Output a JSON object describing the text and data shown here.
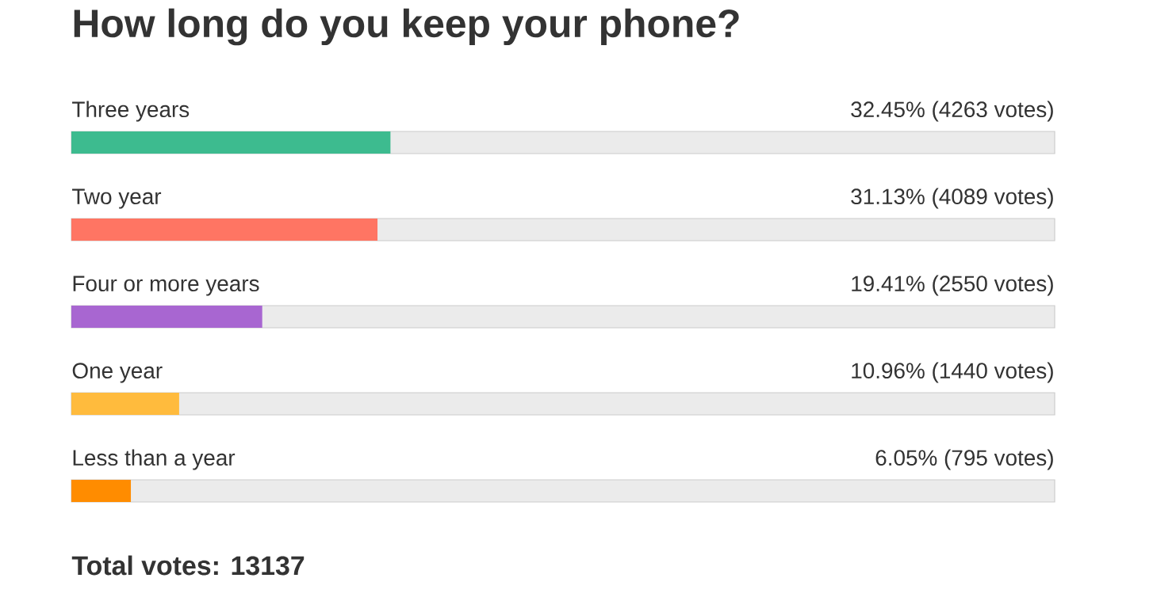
{
  "chart_data": {
    "type": "bar",
    "orientation": "horizontal",
    "title": "How long do you keep your phone?",
    "categories": [
      "Three years",
      "Two year",
      "Four or more years",
      "One year",
      "Less than a year"
    ],
    "values": [
      32.45,
      31.13,
      19.41,
      10.96,
      6.05
    ],
    "value_labels": [
      "32.45% (4263 votes)",
      "31.13% (4089 votes)",
      "19.41% (2550 votes)",
      "10.96% (1440 votes)",
      "6.05% (795 votes)"
    ],
    "colors": [
      "#3dbb8f",
      "#ff7563",
      "#a866d1",
      "#ffbb3d",
      "#ff8c00"
    ],
    "xlim": [
      0,
      100
    ],
    "annotations": [
      "Total votes: 13137"
    ]
  }
}
